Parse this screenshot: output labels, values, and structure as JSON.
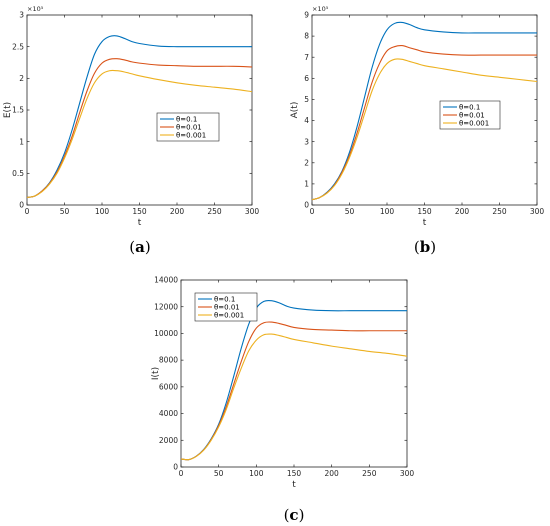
{
  "chart_data": [
    {
      "type": "line",
      "panel": "a",
      "caption": {
        "open": "(",
        "letter": "a",
        "close": ")"
      },
      "xlabel": "t",
      "ylabel": "E(t)",
      "xlim": [
        0,
        300
      ],
      "ylim": [
        0,
        3
      ],
      "scale_exponent": "×10⁵",
      "xticks": [
        "0",
        "50",
        "100",
        "150",
        "200",
        "250",
        "300"
      ],
      "yticks": [
        "0",
        "0.5",
        "1",
        "1.5",
        "2",
        "2.5",
        "3"
      ],
      "legend_position": "center-right",
      "x": [
        0,
        10,
        20,
        30,
        40,
        50,
        60,
        70,
        80,
        90,
        100,
        110,
        120,
        130,
        140,
        150,
        175,
        200,
        225,
        250,
        275,
        300
      ],
      "series": [
        {
          "name": "θ=0.1",
          "color": "#0072bd",
          "values": [
            0.12,
            0.14,
            0.22,
            0.35,
            0.55,
            0.82,
            1.18,
            1.6,
            2.02,
            2.38,
            2.58,
            2.66,
            2.67,
            2.63,
            2.58,
            2.55,
            2.51,
            2.5,
            2.5,
            2.5,
            2.5,
            2.5
          ]
        },
        {
          "name": "θ=0.01",
          "color": "#d95319",
          "values": [
            0.12,
            0.14,
            0.22,
            0.34,
            0.52,
            0.77,
            1.08,
            1.45,
            1.8,
            2.08,
            2.24,
            2.3,
            2.31,
            2.29,
            2.26,
            2.24,
            2.21,
            2.2,
            2.19,
            2.19,
            2.19,
            2.18
          ]
        },
        {
          "name": "θ=0.001",
          "color": "#edb120",
          "values": [
            0.12,
            0.14,
            0.21,
            0.33,
            0.5,
            0.74,
            1.03,
            1.36,
            1.68,
            1.93,
            2.07,
            2.12,
            2.12,
            2.1,
            2.07,
            2.04,
            1.98,
            1.93,
            1.89,
            1.86,
            1.83,
            1.79
          ]
        }
      ]
    },
    {
      "type": "line",
      "panel": "b",
      "caption": {
        "open": "(",
        "letter": "b",
        "close": ")"
      },
      "xlabel": "t",
      "ylabel": "A(t)",
      "xlim": [
        0,
        300
      ],
      "ylim": [
        0,
        9
      ],
      "scale_exponent": "×10⁵",
      "xticks": [
        "0",
        "50",
        "100",
        "150",
        "200",
        "250",
        "300"
      ],
      "yticks": [
        "0",
        "1",
        "2",
        "3",
        "4",
        "5",
        "6",
        "7",
        "8",
        "9"
      ],
      "legend_position": "center-right",
      "x": [
        0,
        10,
        20,
        30,
        40,
        50,
        60,
        70,
        80,
        90,
        100,
        110,
        120,
        130,
        140,
        150,
        175,
        200,
        225,
        250,
        275,
        300
      ],
      "series": [
        {
          "name": "θ=0.1",
          "color": "#0072bd",
          "values": [
            0.25,
            0.35,
            0.6,
            1.0,
            1.6,
            2.5,
            3.7,
            5.1,
            6.5,
            7.6,
            8.3,
            8.6,
            8.65,
            8.55,
            8.4,
            8.3,
            8.2,
            8.15,
            8.15,
            8.15,
            8.15,
            8.15
          ]
        },
        {
          "name": "θ=0.01",
          "color": "#d95319",
          "values": [
            0.25,
            0.35,
            0.58,
            0.95,
            1.55,
            2.35,
            3.4,
            4.6,
            5.8,
            6.7,
            7.3,
            7.5,
            7.55,
            7.45,
            7.35,
            7.25,
            7.15,
            7.1,
            7.1,
            7.1,
            7.1,
            7.1
          ]
        },
        {
          "name": "θ=0.001",
          "color": "#edb120",
          "values": [
            0.25,
            0.35,
            0.56,
            0.92,
            1.48,
            2.25,
            3.2,
            4.3,
            5.4,
            6.2,
            6.7,
            6.9,
            6.9,
            6.8,
            6.7,
            6.6,
            6.45,
            6.3,
            6.15,
            6.05,
            5.95,
            5.85
          ]
        }
      ]
    },
    {
      "type": "line",
      "panel": "c",
      "caption": {
        "open": "(",
        "letter": "c",
        "close": ")"
      },
      "xlabel": "t",
      "ylabel": "I(t)",
      "xlim": [
        0,
        300
      ],
      "ylim": [
        0,
        14000
      ],
      "scale_exponent": "",
      "xticks": [
        "0",
        "50",
        "100",
        "150",
        "200",
        "250",
        "300"
      ],
      "yticks": [
        "0",
        "2000",
        "4000",
        "6000",
        "8000",
        "10000",
        "12000",
        "14000"
      ],
      "legend_position": "top-left",
      "x": [
        0,
        10,
        20,
        30,
        40,
        50,
        60,
        70,
        80,
        90,
        100,
        110,
        120,
        130,
        140,
        150,
        175,
        200,
        225,
        250,
        275,
        300
      ],
      "series": [
        {
          "name": "θ=0.1",
          "color": "#0072bd",
          "values": [
            600,
            550,
            800,
            1300,
            2100,
            3200,
            4800,
            6800,
            8900,
            10700,
            11900,
            12400,
            12450,
            12300,
            12050,
            11900,
            11750,
            11700,
            11700,
            11700,
            11700,
            11700
          ]
        },
        {
          "name": "θ=0.01",
          "color": "#d95319",
          "values": [
            600,
            550,
            790,
            1270,
            2050,
            3100,
            4500,
            6200,
            7900,
            9400,
            10400,
            10800,
            10850,
            10750,
            10600,
            10450,
            10300,
            10250,
            10200,
            10200,
            10200,
            10200
          ]
        },
        {
          "name": "θ=0.001",
          "color": "#edb120",
          "values": [
            600,
            550,
            780,
            1250,
            2000,
            3000,
            4300,
            5900,
            7400,
            8700,
            9500,
            9900,
            9950,
            9850,
            9700,
            9550,
            9300,
            9050,
            8850,
            8650,
            8500,
            8300
          ]
        }
      ]
    }
  ]
}
